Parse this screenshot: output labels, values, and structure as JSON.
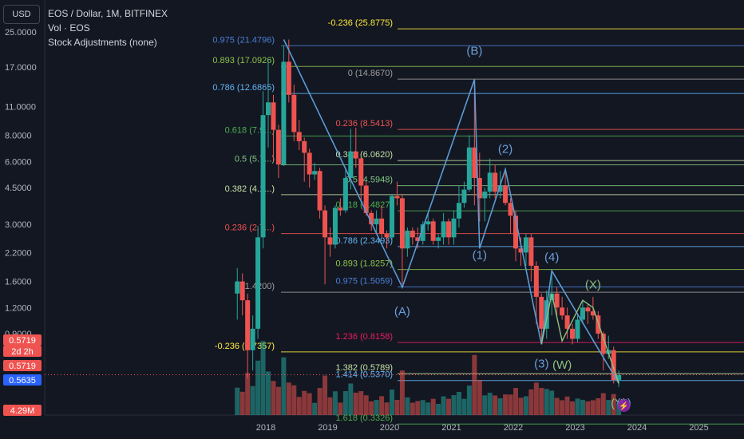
{
  "header": {
    "currency": "USD",
    "title": "EOS / Dollar, 1M, BITFINEX",
    "indicator": "Vol · EOS",
    "adjustments": "Stock Adjustments (none)"
  },
  "price_badges": {
    "last": "0.5719",
    "countdown": "2d 2h",
    "last2": "0.5719",
    "prev": "0.5635",
    "volume": "4.29M"
  },
  "colors": {
    "background": "#131722",
    "up": "#26a69a",
    "down": "#ef5350",
    "wave": "#5b9bd5",
    "wave_label": "#6a9fd8",
    "alt_wave": "#8fbf7f"
  },
  "chart_data": {
    "type": "candlestick",
    "y_scale": "log",
    "y_ticks": [
      "25.0000",
      "17.0000",
      "11.0000",
      "8.0000",
      "6.0000",
      "4.5000",
      "3.0000",
      "2.2000",
      "1.6000",
      "1.2000",
      "0.9000"
    ],
    "x_ticks": [
      "2018",
      "2019",
      "2020",
      "2021",
      "2022",
      "2023",
      "2024",
      "2025"
    ],
    "candles": [
      {
        "t": "2017-07",
        "o": 1.4,
        "h": 1.85,
        "l": 1.05,
        "c": 1.6
      },
      {
        "t": "2017-08",
        "o": 1.6,
        "h": 1.75,
        "l": 1.1,
        "c": 1.3
      },
      {
        "t": "2017-09",
        "o": 1.3,
        "h": 1.4,
        "l": 0.55,
        "c": 0.75
      },
      {
        "t": "2017-10",
        "o": 0.75,
        "h": 1.1,
        "l": 0.6,
        "c": 0.95
      },
      {
        "t": "2017-11",
        "o": 0.95,
        "h": 2.95,
        "l": 0.85,
        "c": 2.6
      },
      {
        "t": "2017-12",
        "o": 2.6,
        "h": 13.0,
        "l": 2.3,
        "c": 10.0
      },
      {
        "t": "2018-01",
        "o": 10.0,
        "h": 18.5,
        "l": 7.0,
        "c": 11.5
      },
      {
        "t": "2018-02",
        "o": 11.5,
        "h": 12.5,
        "l": 6.0,
        "c": 8.5
      },
      {
        "t": "2018-03",
        "o": 8.5,
        "h": 9.0,
        "l": 5.0,
        "c": 5.8
      },
      {
        "t": "2018-04",
        "o": 5.8,
        "h": 21.5,
        "l": 5.7,
        "c": 18.0
      },
      {
        "t": "2018-05",
        "o": 18.0,
        "h": 23.0,
        "l": 11.5,
        "c": 12.5
      },
      {
        "t": "2018-06",
        "o": 12.5,
        "h": 14.0,
        "l": 7.5,
        "c": 8.3
      },
      {
        "t": "2018-07",
        "o": 8.3,
        "h": 9.5,
        "l": 6.8,
        "c": 7.5
      },
      {
        "t": "2018-08",
        "o": 7.5,
        "h": 7.8,
        "l": 4.8,
        "c": 6.6
      },
      {
        "t": "2018-09",
        "o": 6.6,
        "h": 6.9,
        "l": 4.5,
        "c": 5.2
      },
      {
        "t": "2018-10",
        "o": 5.2,
        "h": 5.9,
        "l": 4.9,
        "c": 5.4
      },
      {
        "t": "2018-11",
        "o": 5.4,
        "h": 5.6,
        "l": 3.2,
        "c": 3.5
      },
      {
        "t": "2018-12",
        "o": 3.5,
        "h": 3.7,
        "l": 1.55,
        "c": 2.6
      },
      {
        "t": "2019-01",
        "o": 2.6,
        "h": 2.9,
        "l": 2.1,
        "c": 2.4
      },
      {
        "t": "2019-02",
        "o": 2.4,
        "h": 3.7,
        "l": 2.3,
        "c": 3.6
      },
      {
        "t": "2019-03",
        "o": 3.6,
        "h": 4.0,
        "l": 3.3,
        "c": 3.5
      },
      {
        "t": "2019-04",
        "o": 3.5,
        "h": 5.5,
        "l": 3.4,
        "c": 5.0
      },
      {
        "t": "2019-05",
        "o": 5.0,
        "h": 8.6,
        "l": 4.4,
        "c": 6.7
      },
      {
        "t": "2019-06",
        "o": 6.7,
        "h": 8.7,
        "l": 5.6,
        "c": 6.2
      },
      {
        "t": "2019-07",
        "o": 6.2,
        "h": 6.3,
        "l": 3.9,
        "c": 4.6
      },
      {
        "t": "2019-08",
        "o": 4.6,
        "h": 4.8,
        "l": 3.3,
        "c": 3.4
      },
      {
        "t": "2019-09",
        "o": 3.4,
        "h": 3.5,
        "l": 2.8,
        "c": 3.0
      },
      {
        "t": "2019-10",
        "o": 3.0,
        "h": 3.5,
        "l": 2.7,
        "c": 3.2
      },
      {
        "t": "2019-11",
        "o": 3.2,
        "h": 3.7,
        "l": 2.6,
        "c": 2.7
      },
      {
        "t": "2019-12",
        "o": 2.7,
        "h": 2.8,
        "l": 2.3,
        "c": 2.6
      },
      {
        "t": "2020-01",
        "o": 2.6,
        "h": 4.2,
        "l": 2.5,
        "c": 4.1
      },
      {
        "t": "2020-02",
        "o": 4.1,
        "h": 4.8,
        "l": 3.7,
        "c": 4.0
      },
      {
        "t": "2020-03",
        "o": 4.0,
        "h": 4.2,
        "l": 1.55,
        "c": 2.3
      },
      {
        "t": "2020-04",
        "o": 2.3,
        "h": 2.9,
        "l": 2.1,
        "c": 2.8
      },
      {
        "t": "2020-05",
        "o": 2.8,
        "h": 2.9,
        "l": 2.4,
        "c": 2.6
      },
      {
        "t": "2020-06",
        "o": 2.6,
        "h": 2.9,
        "l": 2.3,
        "c": 2.5
      },
      {
        "t": "2020-07",
        "o": 2.5,
        "h": 3.1,
        "l": 2.4,
        "c": 3.0
      },
      {
        "t": "2020-08",
        "o": 3.0,
        "h": 3.4,
        "l": 2.8,
        "c": 3.1
      },
      {
        "t": "2020-09",
        "o": 3.1,
        "h": 3.2,
        "l": 2.4,
        "c": 2.5
      },
      {
        "t": "2020-10",
        "o": 2.5,
        "h": 2.7,
        "l": 2.3,
        "c": 2.6
      },
      {
        "t": "2020-11",
        "o": 2.6,
        "h": 3.4,
        "l": 2.4,
        "c": 3.1
      },
      {
        "t": "2020-12",
        "o": 3.1,
        "h": 3.2,
        "l": 2.4,
        "c": 2.6
      },
      {
        "t": "2021-01",
        "o": 2.6,
        "h": 3.5,
        "l": 2.4,
        "c": 3.2
      },
      {
        "t": "2021-02",
        "o": 3.2,
        "h": 4.6,
        "l": 2.9,
        "c": 3.8
      },
      {
        "t": "2021-03",
        "o": 3.8,
        "h": 4.8,
        "l": 3.6,
        "c": 4.4
      },
      {
        "t": "2021-04",
        "o": 4.4,
        "h": 8.0,
        "l": 4.3,
        "c": 7.0
      },
      {
        "t": "2021-05",
        "o": 7.0,
        "h": 14.8,
        "l": 3.7,
        "c": 5.0
      },
      {
        "t": "2021-06",
        "o": 5.0,
        "h": 6.6,
        "l": 3.1,
        "c": 4.0
      },
      {
        "t": "2021-07",
        "o": 4.0,
        "h": 4.5,
        "l": 3.1,
        "c": 4.3
      },
      {
        "t": "2021-08",
        "o": 4.3,
        "h": 6.2,
        "l": 4.0,
        "c": 5.3
      },
      {
        "t": "2021-09",
        "o": 5.3,
        "h": 5.8,
        "l": 4.0,
        "c": 4.3
      },
      {
        "t": "2021-10",
        "o": 4.3,
        "h": 5.4,
        "l": 4.0,
        "c": 4.6
      },
      {
        "t": "2021-11",
        "o": 4.6,
        "h": 5.5,
        "l": 3.7,
        "c": 3.8
      },
      {
        "t": "2021-12",
        "o": 3.8,
        "h": 4.0,
        "l": 2.7,
        "c": 3.3
      },
      {
        "t": "2022-01",
        "o": 3.3,
        "h": 3.5,
        "l": 2.0,
        "c": 2.3
      },
      {
        "t": "2022-02",
        "o": 2.3,
        "h": 2.6,
        "l": 1.9,
        "c": 2.2
      },
      {
        "t": "2022-03",
        "o": 2.2,
        "h": 2.7,
        "l": 1.9,
        "c": 2.6
      },
      {
        "t": "2022-04",
        "o": 2.6,
        "h": 2.7,
        "l": 1.6,
        "c": 1.9
      },
      {
        "t": "2022-05",
        "o": 1.9,
        "h": 2.0,
        "l": 1.0,
        "c": 1.35
      },
      {
        "t": "2022-06",
        "o": 1.35,
        "h": 1.4,
        "l": 0.8,
        "c": 0.95
      },
      {
        "t": "2022-07",
        "o": 0.95,
        "h": 1.45,
        "l": 0.85,
        "c": 1.3
      },
      {
        "t": "2022-08",
        "o": 1.3,
        "h": 1.8,
        "l": 1.1,
        "c": 1.4
      },
      {
        "t": "2022-09",
        "o": 1.4,
        "h": 1.5,
        "l": 1.1,
        "c": 1.2
      },
      {
        "t": "2022-10",
        "o": 1.2,
        "h": 1.35,
        "l": 1.05,
        "c": 1.1
      },
      {
        "t": "2022-11",
        "o": 1.1,
        "h": 1.2,
        "l": 0.85,
        "c": 0.95
      },
      {
        "t": "2022-12",
        "o": 0.95,
        "h": 1.0,
        "l": 0.8,
        "c": 0.85
      },
      {
        "t": "2023-01",
        "o": 0.85,
        "h": 1.1,
        "l": 0.82,
        "c": 1.05
      },
      {
        "t": "2023-02",
        "o": 1.05,
        "h": 1.3,
        "l": 1.0,
        "c": 1.2
      },
      {
        "t": "2023-03",
        "o": 1.2,
        "h": 1.25,
        "l": 1.0,
        "c": 1.15
      },
      {
        "t": "2023-04",
        "o": 1.15,
        "h": 1.35,
        "l": 1.05,
        "c": 1.1
      },
      {
        "t": "2023-05",
        "o": 1.1,
        "h": 1.15,
        "l": 0.85,
        "c": 0.9
      },
      {
        "t": "2023-06",
        "o": 0.9,
        "h": 0.92,
        "l": 0.6,
        "c": 0.72
      },
      {
        "t": "2023-07",
        "o": 0.72,
        "h": 0.88,
        "l": 0.68,
        "c": 0.75
      },
      {
        "t": "2023-08",
        "o": 0.75,
        "h": 0.78,
        "l": 0.52,
        "c": 0.54
      },
      {
        "t": "2023-09",
        "o": 0.54,
        "h": 0.6,
        "l": 0.5,
        "c": 0.57
      }
    ],
    "fib_sets": [
      {
        "label_x": "2018-07",
        "levels": [
          {
            "label": "0.975 (21.4796)",
            "p": 21.4796,
            "color": "#4a7fd4"
          },
          {
            "label": "0.893 (17.0926)",
            "p": 17.0926,
            "color": "#8bc34a"
          },
          {
            "label": "0.786 (12.6865)",
            "p": 12.6865,
            "color": "#64b5f6"
          },
          {
            "label": "0.618 (7.9...)",
            "p": 7.94,
            "color": "#4caf50"
          },
          {
            "label": "0.5 (5.7...)",
            "p": 5.78,
            "color": "#81c784"
          },
          {
            "label": "0.382 (4.1...)",
            "p": 4.16,
            "color": "#c5e1a5"
          },
          {
            "label": "0.236 (2.7...)",
            "p": 2.71,
            "color": "#ef5350"
          },
          {
            "label": "0 (1.4200)",
            "p": 1.42,
            "color": "#9e9e9e"
          },
          {
            "label": "-0.236 (0.7357)",
            "p": 0.7357,
            "color": "#ffeb3b"
          }
        ]
      },
      {
        "label_x": "2020-08",
        "levels": [
          {
            "label": "-0.236 (25.8775)",
            "p": 25.8775,
            "color": "#ffeb3b"
          },
          {
            "label": "0 (14.8670)",
            "p": 14.867,
            "color": "#9e9e9e"
          },
          {
            "label": "0.236 (8.5413)",
            "p": 8.5413,
            "color": "#ef5350"
          },
          {
            "label": "0.382 (6.0620)",
            "p": 6.062,
            "color": "#c5e1a5"
          },
          {
            "label": "0.5 (4.5948)",
            "p": 4.5948,
            "color": "#81c784"
          },
          {
            "label": "0.618 (3.4827)",
            "p": 3.4827,
            "color": "#4caf50"
          },
          {
            "label": "0.786 (2.3493)",
            "p": 2.3493,
            "color": "#64b5f6"
          },
          {
            "label": "0.893 (1.8257)",
            "p": 1.8257,
            "color": "#8bc34a"
          },
          {
            "label": "0.975 (1.5059)",
            "p": 1.5059,
            "color": "#4a7fd4"
          },
          {
            "label": "1.236 (0.8158)",
            "p": 0.8158,
            "color": "#e91e63"
          },
          {
            "label": "1.382 (0.5789)",
            "p": 0.5789,
            "color": "#c5e1a5"
          },
          {
            "label": "1.414 (0.5370)",
            "p": 0.537,
            "color": "#64b5f6"
          },
          {
            "label": "1.618 (0.3326)",
            "p": 0.3326,
            "color": "#4caf50"
          }
        ]
      }
    ],
    "wave_labels": [
      {
        "text": "(A)",
        "t": "2020-03",
        "p": 1.1
      },
      {
        "text": "(B)",
        "t": "2021-05",
        "p": 19.5
      },
      {
        "text": "(1)",
        "t": "2021-06",
        "p": 2.05
      },
      {
        "text": "(2)",
        "t": "2021-11",
        "p": 6.6
      },
      {
        "text": "(3)",
        "t": "2022-06",
        "p": 0.62
      },
      {
        "text": "(4)",
        "t": "2022-08",
        "p": 2.0
      },
      {
        "text": "(W)",
        "t": "2022-10",
        "p": 0.61
      },
      {
        "text": "(X)",
        "t": "2023-04",
        "p": 1.48
      },
      {
        "text": "(Y)",
        "t": "2023-09",
        "p": 0.38
      },
      {
        "text": "(5)",
        "t": "2023-10",
        "p": 0.4
      }
    ]
  }
}
